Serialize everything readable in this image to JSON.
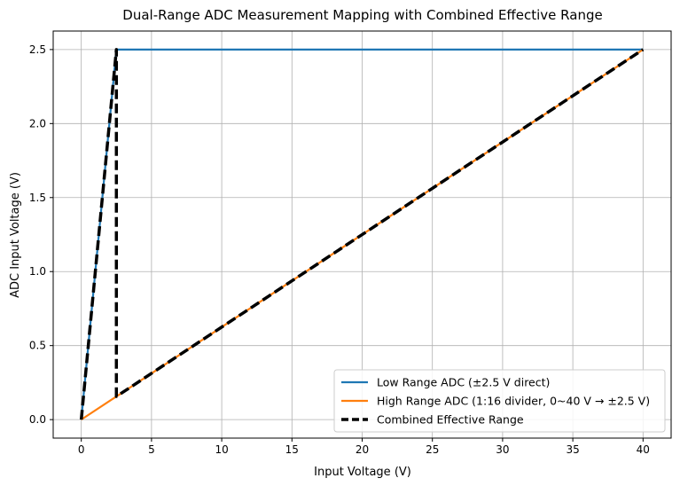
{
  "chart_data": {
    "type": "line",
    "title": "Dual-Range ADC Measurement Mapping with Combined Effective Range",
    "xlabel": "Input Voltage (V)",
    "ylabel": "ADC Input Voltage (V)",
    "xlim": [
      -2,
      42
    ],
    "ylim": [
      -0.125,
      2.625
    ],
    "xticks": [
      0,
      5,
      10,
      15,
      20,
      25,
      30,
      35,
      40
    ],
    "yticks": [
      0.0,
      0.5,
      1.0,
      1.5,
      2.0,
      2.5
    ],
    "xtick_labels": [
      "0",
      "5",
      "10",
      "15",
      "20",
      "25",
      "30",
      "35",
      "40"
    ],
    "ytick_labels": [
      "0.0",
      "0.5",
      "1.0",
      "1.5",
      "2.0",
      "2.5"
    ],
    "grid": true,
    "legend_position": "lower-right",
    "series": [
      {
        "name": "Low Range ADC (±2.5 V direct)",
        "color": "#1f77b4",
        "style": "solid",
        "x": [
          0,
          2.5,
          40
        ],
        "y": [
          0,
          2.5,
          2.5
        ]
      },
      {
        "name": "High Range ADC (1:16 divider, 0~40 V → ±2.5 V)",
        "color": "#ff7f0e",
        "style": "solid",
        "x": [
          0,
          40
        ],
        "y": [
          0,
          2.5
        ]
      },
      {
        "name": "Combined Effective Range",
        "color": "#000000",
        "style": "dashed",
        "x": [
          0,
          2.5,
          2.5,
          40
        ],
        "y": [
          0,
          2.5,
          0.15625,
          2.5
        ]
      }
    ]
  }
}
